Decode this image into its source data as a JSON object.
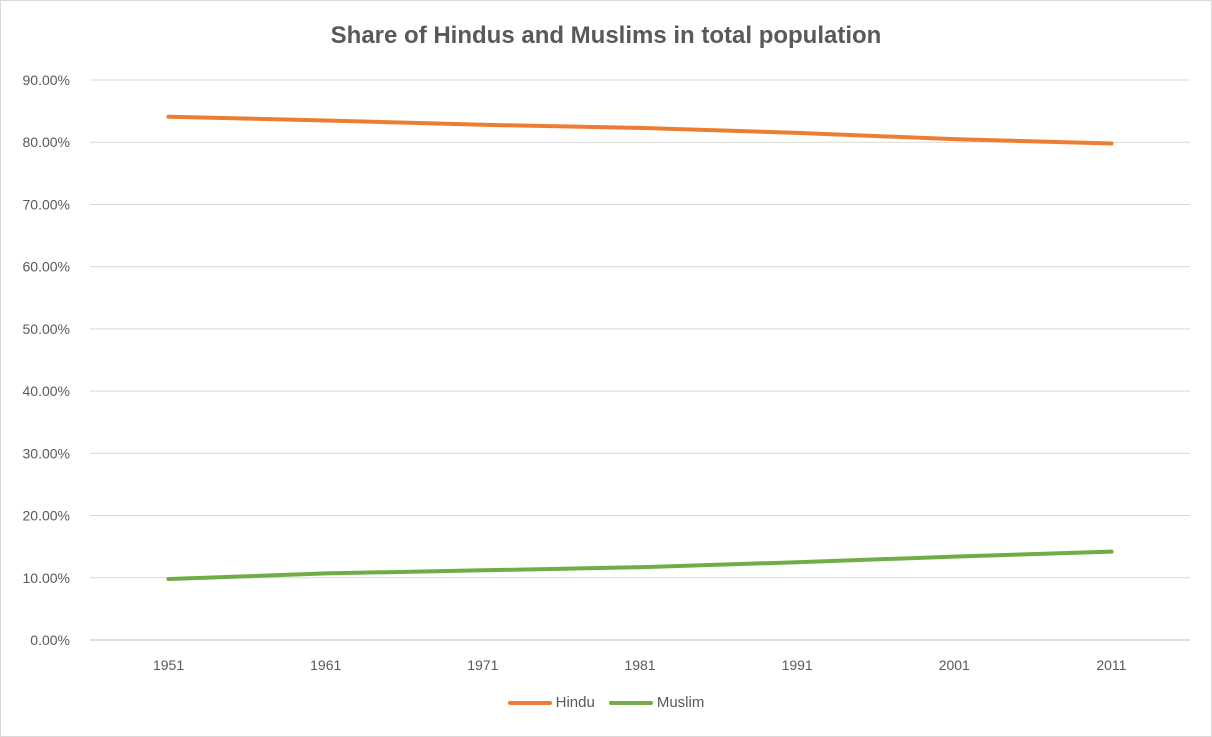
{
  "chart_data": {
    "type": "line",
    "title": "Share of Hindus and Muslims in total population",
    "xlabel": "",
    "ylabel": "",
    "categories": [
      "1951",
      "1961",
      "1971",
      "1981",
      "1991",
      "2001",
      "2011"
    ],
    "ylim": [
      0,
      0.9
    ],
    "yticks": [
      0,
      0.1,
      0.2,
      0.3,
      0.4,
      0.5,
      0.6,
      0.7,
      0.8,
      0.9
    ],
    "ytick_labels": [
      "0.00%",
      "10.00%",
      "20.00%",
      "30.00%",
      "40.00%",
      "50.00%",
      "60.00%",
      "70.00%",
      "80.00%",
      "90.00%"
    ],
    "grid": true,
    "legend_position": "bottom",
    "series": [
      {
        "name": "Hindu",
        "color": "#ed7d31",
        "values": [
          0.841,
          0.835,
          0.828,
          0.823,
          0.815,
          0.805,
          0.798
        ]
      },
      {
        "name": "Muslim",
        "color": "#70ad47",
        "values": [
          0.098,
          0.107,
          0.112,
          0.117,
          0.125,
          0.134,
          0.142
        ]
      }
    ]
  }
}
